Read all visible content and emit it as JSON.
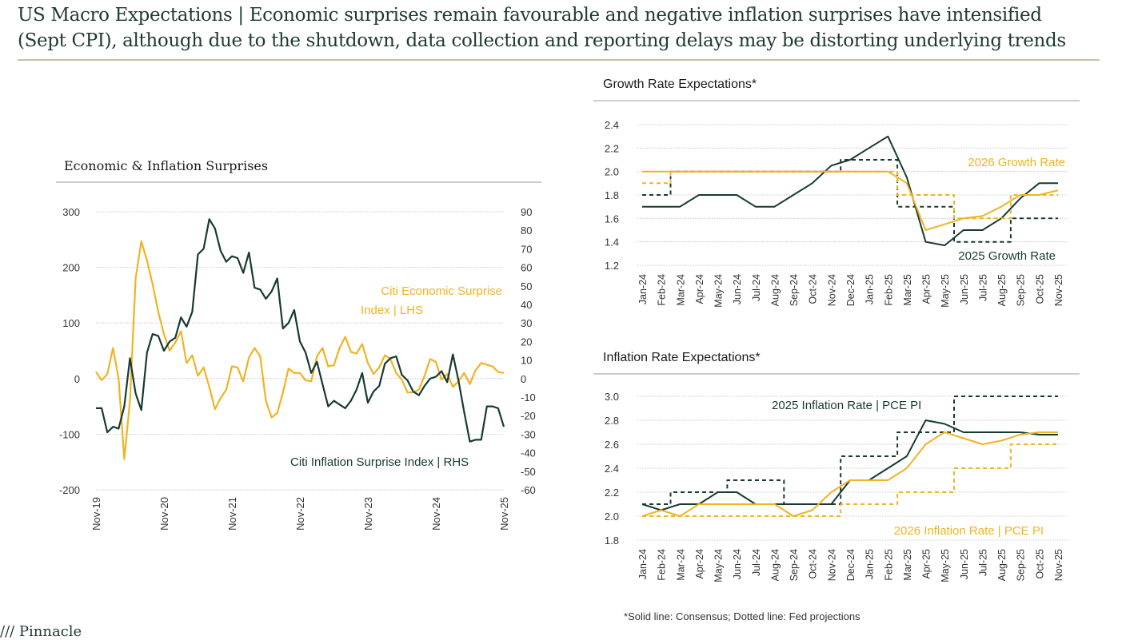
{
  "header": {
    "title_line1": "US Macro Expectations | Economic surprises remain favourable and negative inflation surprises have intensified",
    "title_line2": "(Sept CPI), although due to the shutdown, data collection and reporting delays may be distorting underlying trends"
  },
  "footnote": "*Solid line: Consensus; Dotted line: Fed projections",
  "logo": "/// Pinnacle",
  "colors": {
    "gold": "#F0B323",
    "dark": "#173A31",
    "grid": "#bdbdbd",
    "text": "#333333"
  },
  "chart_data": [
    {
      "type": "line",
      "title": "Economic & Inflation Surprises",
      "xlabel": "",
      "ylabel": "",
      "ylim_left": [
        -200,
        300
      ],
      "ylim_right": [
        -60,
        90
      ],
      "left_ticks": [
        300,
        200,
        100,
        0,
        -100,
        -200
      ],
      "right_ticks": [
        90,
        80,
        70,
        60,
        50,
        40,
        30,
        20,
        10,
        0,
        -10,
        -20,
        -30,
        -40,
        -50,
        -60
      ],
      "x_ticks": [
        "Nov-19",
        "Nov-20",
        "Nov-21",
        "Nov-22",
        "Nov-23",
        "Nov-24",
        "Nov-25"
      ],
      "x_range": [
        0,
        72
      ],
      "series": [
        {
          "name": "Citi Economic Surprise Index | LHS",
          "axis": "left",
          "color": "gold",
          "x": [
            0,
            1,
            2,
            3,
            4,
            5,
            6,
            7,
            8,
            9,
            10,
            11,
            12,
            13,
            14,
            15,
            16,
            17,
            18,
            19,
            20,
            21,
            22,
            23,
            24,
            25,
            26,
            27,
            28,
            29,
            30,
            31,
            32,
            33,
            34,
            35,
            36,
            37,
            38,
            39,
            40,
            41,
            42,
            43,
            44,
            45,
            46,
            47,
            48,
            49,
            50,
            51,
            52,
            53,
            54,
            55,
            56,
            57,
            58,
            59,
            60,
            61,
            62,
            63,
            64,
            65,
            66,
            67,
            68,
            69,
            70,
            71,
            72
          ],
          "values": [
            12,
            -3,
            8,
            55,
            0,
            -145,
            -40,
            180,
            247,
            212,
            170,
            120,
            80,
            50,
            65,
            85,
            28,
            42,
            5,
            20,
            -15,
            -55,
            -35,
            -20,
            22,
            20,
            -5,
            38,
            55,
            40,
            -40,
            -70,
            -62,
            -25,
            18,
            10,
            10,
            -3,
            -5,
            40,
            55,
            22,
            24,
            55,
            75,
            48,
            45,
            62,
            28,
            8,
            20,
            42,
            35,
            10,
            -2,
            -25,
            -25,
            -20,
            5,
            35,
            30,
            -2,
            8,
            -15,
            -5,
            10,
            -10,
            15,
            28,
            25,
            22,
            12,
            10
          ]
        },
        {
          "name": "Citi Inflation Surprise Index | RHS",
          "axis": "right",
          "color": "dark",
          "x": [
            0,
            1,
            2,
            3,
            4,
            5,
            6,
            7,
            8,
            9,
            10,
            11,
            12,
            13,
            14,
            15,
            16,
            17,
            18,
            19,
            20,
            21,
            22,
            23,
            24,
            25,
            26,
            27,
            28,
            29,
            30,
            31,
            32,
            33,
            34,
            35,
            36,
            37,
            38,
            39,
            40,
            41,
            42,
            43,
            44,
            45,
            46,
            47,
            48,
            49,
            50,
            51,
            52,
            53,
            54,
            55,
            56,
            57,
            58,
            59,
            60,
            61,
            62,
            63,
            64,
            65,
            66,
            67,
            68,
            69,
            70,
            71,
            72
          ],
          "values": [
            -16,
            -16,
            -29,
            -26,
            -27,
            -15,
            11,
            -8,
            -17,
            14,
            24,
            23,
            15,
            20,
            22,
            33,
            28,
            36,
            67,
            70,
            86,
            81,
            69,
            63,
            66,
            65,
            57,
            68,
            49,
            48,
            43,
            47,
            54,
            27,
            30,
            37,
            20,
            14,
            3,
            9,
            -3,
            -15,
            -12,
            -14,
            -16,
            -12,
            -6,
            3,
            -13,
            -7,
            -4,
            8,
            11,
            12,
            2,
            -1,
            -7,
            -9,
            -4,
            0,
            1,
            4,
            -2,
            13,
            -1,
            -18,
            -34,
            -33,
            -33,
            -15,
            -15,
            -16,
            -26
          ]
        }
      ],
      "annotations": [
        {
          "text_line1": "Citi Economic Surprise",
          "text_line2": "Index | LHS"
        },
        {
          "text": "Citi Inflation Surprise Index | RHS"
        }
      ]
    },
    {
      "type": "line",
      "title": "Growth Rate Expectations*",
      "ylim": [
        1.2,
        2.4
      ],
      "y_ticks": [
        "2.4",
        "2.2",
        "2.0",
        "1.8",
        "1.6",
        "1.4",
        "1.2"
      ],
      "categories": [
        "Jan-24",
        "Feb-24",
        "Mar-24",
        "Apr-24",
        "May-24",
        "Jun-24",
        "Jul-24",
        "Aug-24",
        "Sep-24",
        "Oct-24",
        "Nov-24",
        "Dec-24",
        "Jan-25",
        "Feb-25",
        "Mar-25",
        "Apr-25",
        "May-25",
        "Jun-25",
        "Jul-25",
        "Aug-25",
        "Sep-25",
        "Oct-25",
        "Nov-25"
      ],
      "series": [
        {
          "name": "2025 Growth Rate (Consensus)",
          "color": "dark",
          "dash": false,
          "values": [
            1.7,
            1.7,
            1.7,
            1.8,
            1.8,
            1.8,
            1.7,
            1.7,
            1.8,
            1.9,
            2.05,
            2.1,
            2.2,
            2.3,
            1.95,
            1.4,
            1.37,
            1.5,
            1.5,
            1.6,
            1.77,
            1.9,
            1.9
          ]
        },
        {
          "name": "2025 Growth Rate (Fed)",
          "color": "dark",
          "dash": true,
          "values": [
            1.8,
            1.8,
            2.0,
            2.0,
            2.0,
            2.0,
            2.0,
            2.0,
            2.0,
            2.0,
            2.0,
            2.1,
            2.1,
            2.1,
            1.7,
            1.7,
            1.7,
            1.4,
            1.4,
            1.4,
            1.6,
            1.6,
            1.6
          ]
        },
        {
          "name": "2026 Growth Rate (Consensus)",
          "color": "gold",
          "dash": false,
          "values": [
            2.0,
            2.0,
            2.0,
            2.0,
            2.0,
            2.0,
            2.0,
            2.0,
            2.0,
            2.0,
            2.0,
            2.0,
            2.0,
            2.0,
            1.9,
            1.5,
            1.55,
            1.6,
            1.62,
            1.7,
            1.8,
            1.8,
            1.84
          ]
        },
        {
          "name": "2026 Growth Rate (Fed)",
          "color": "gold",
          "dash": true,
          "values": [
            1.9,
            1.9,
            2.0,
            2.0,
            2.0,
            2.0,
            2.0,
            2.0,
            2.0,
            2.0,
            2.0,
            2.0,
            2.0,
            2.0,
            1.8,
            1.8,
            1.8,
            1.6,
            1.6,
            1.6,
            1.8,
            1.8,
            1.8
          ]
        }
      ],
      "labels": {
        "series_2026": "2026 Growth Rate",
        "series_2025": "2025 Growth Rate"
      }
    },
    {
      "type": "line",
      "title": "Inflation Rate Expectations*",
      "ylim": [
        1.8,
        3.0
      ],
      "y_ticks": [
        "3.0",
        "2.8",
        "2.6",
        "2.4",
        "2.2",
        "2.0",
        "1.8"
      ],
      "categories": [
        "Jan-24",
        "Feb-24",
        "Mar-24",
        "Apr-24",
        "May-24",
        "Jun-24",
        "Jul-24",
        "Aug-24",
        "Sep-24",
        "Oct-24",
        "Nov-24",
        "Dec-24",
        "Jan-25",
        "Feb-25",
        "Mar-25",
        "Apr-25",
        "May-25",
        "Jun-25",
        "Jul-25",
        "Aug-25",
        "Sep-25",
        "Oct-25",
        "Nov-25"
      ],
      "series": [
        {
          "name": "2025 Inflation Rate (Consensus)",
          "color": "dark",
          "dash": false,
          "values": [
            2.1,
            2.05,
            2.1,
            2.1,
            2.2,
            2.2,
            2.1,
            2.1,
            2.1,
            2.1,
            2.1,
            2.3,
            2.3,
            2.4,
            2.5,
            2.8,
            2.77,
            2.7,
            2.7,
            2.7,
            2.7,
            2.68,
            2.68
          ]
        },
        {
          "name": "2025 Inflation Rate (Fed)",
          "color": "dark",
          "dash": true,
          "values": [
            2.1,
            2.1,
            2.2,
            2.2,
            2.2,
            2.3,
            2.3,
            2.3,
            2.1,
            2.1,
            2.1,
            2.5,
            2.5,
            2.5,
            2.7,
            2.7,
            2.7,
            3.0,
            3.0,
            3.0,
            3.0,
            3.0,
            3.0
          ]
        },
        {
          "name": "2026 Inflation Rate (Consensus)",
          "color": "gold",
          "dash": false,
          "values": [
            2.0,
            2.05,
            2.0,
            2.1,
            2.1,
            2.1,
            2.1,
            2.1,
            2.0,
            2.05,
            2.2,
            2.3,
            2.3,
            2.3,
            2.4,
            2.6,
            2.7,
            2.65,
            2.6,
            2.63,
            2.68,
            2.7,
            2.7
          ]
        },
        {
          "name": "2026 Inflation Rate (Fed)",
          "color": "gold",
          "dash": true,
          "values": [
            2.0,
            2.0,
            2.0,
            2.0,
            2.0,
            2.0,
            2.0,
            2.0,
            2.0,
            2.0,
            2.0,
            2.1,
            2.1,
            2.1,
            2.2,
            2.2,
            2.2,
            2.4,
            2.4,
            2.4,
            2.6,
            2.6,
            2.6
          ]
        }
      ],
      "labels": {
        "series_2025": "2025 Inflation Rate | PCE PI",
        "series_2026": "2026 Inflation Rate | PCE PI"
      }
    }
  ]
}
